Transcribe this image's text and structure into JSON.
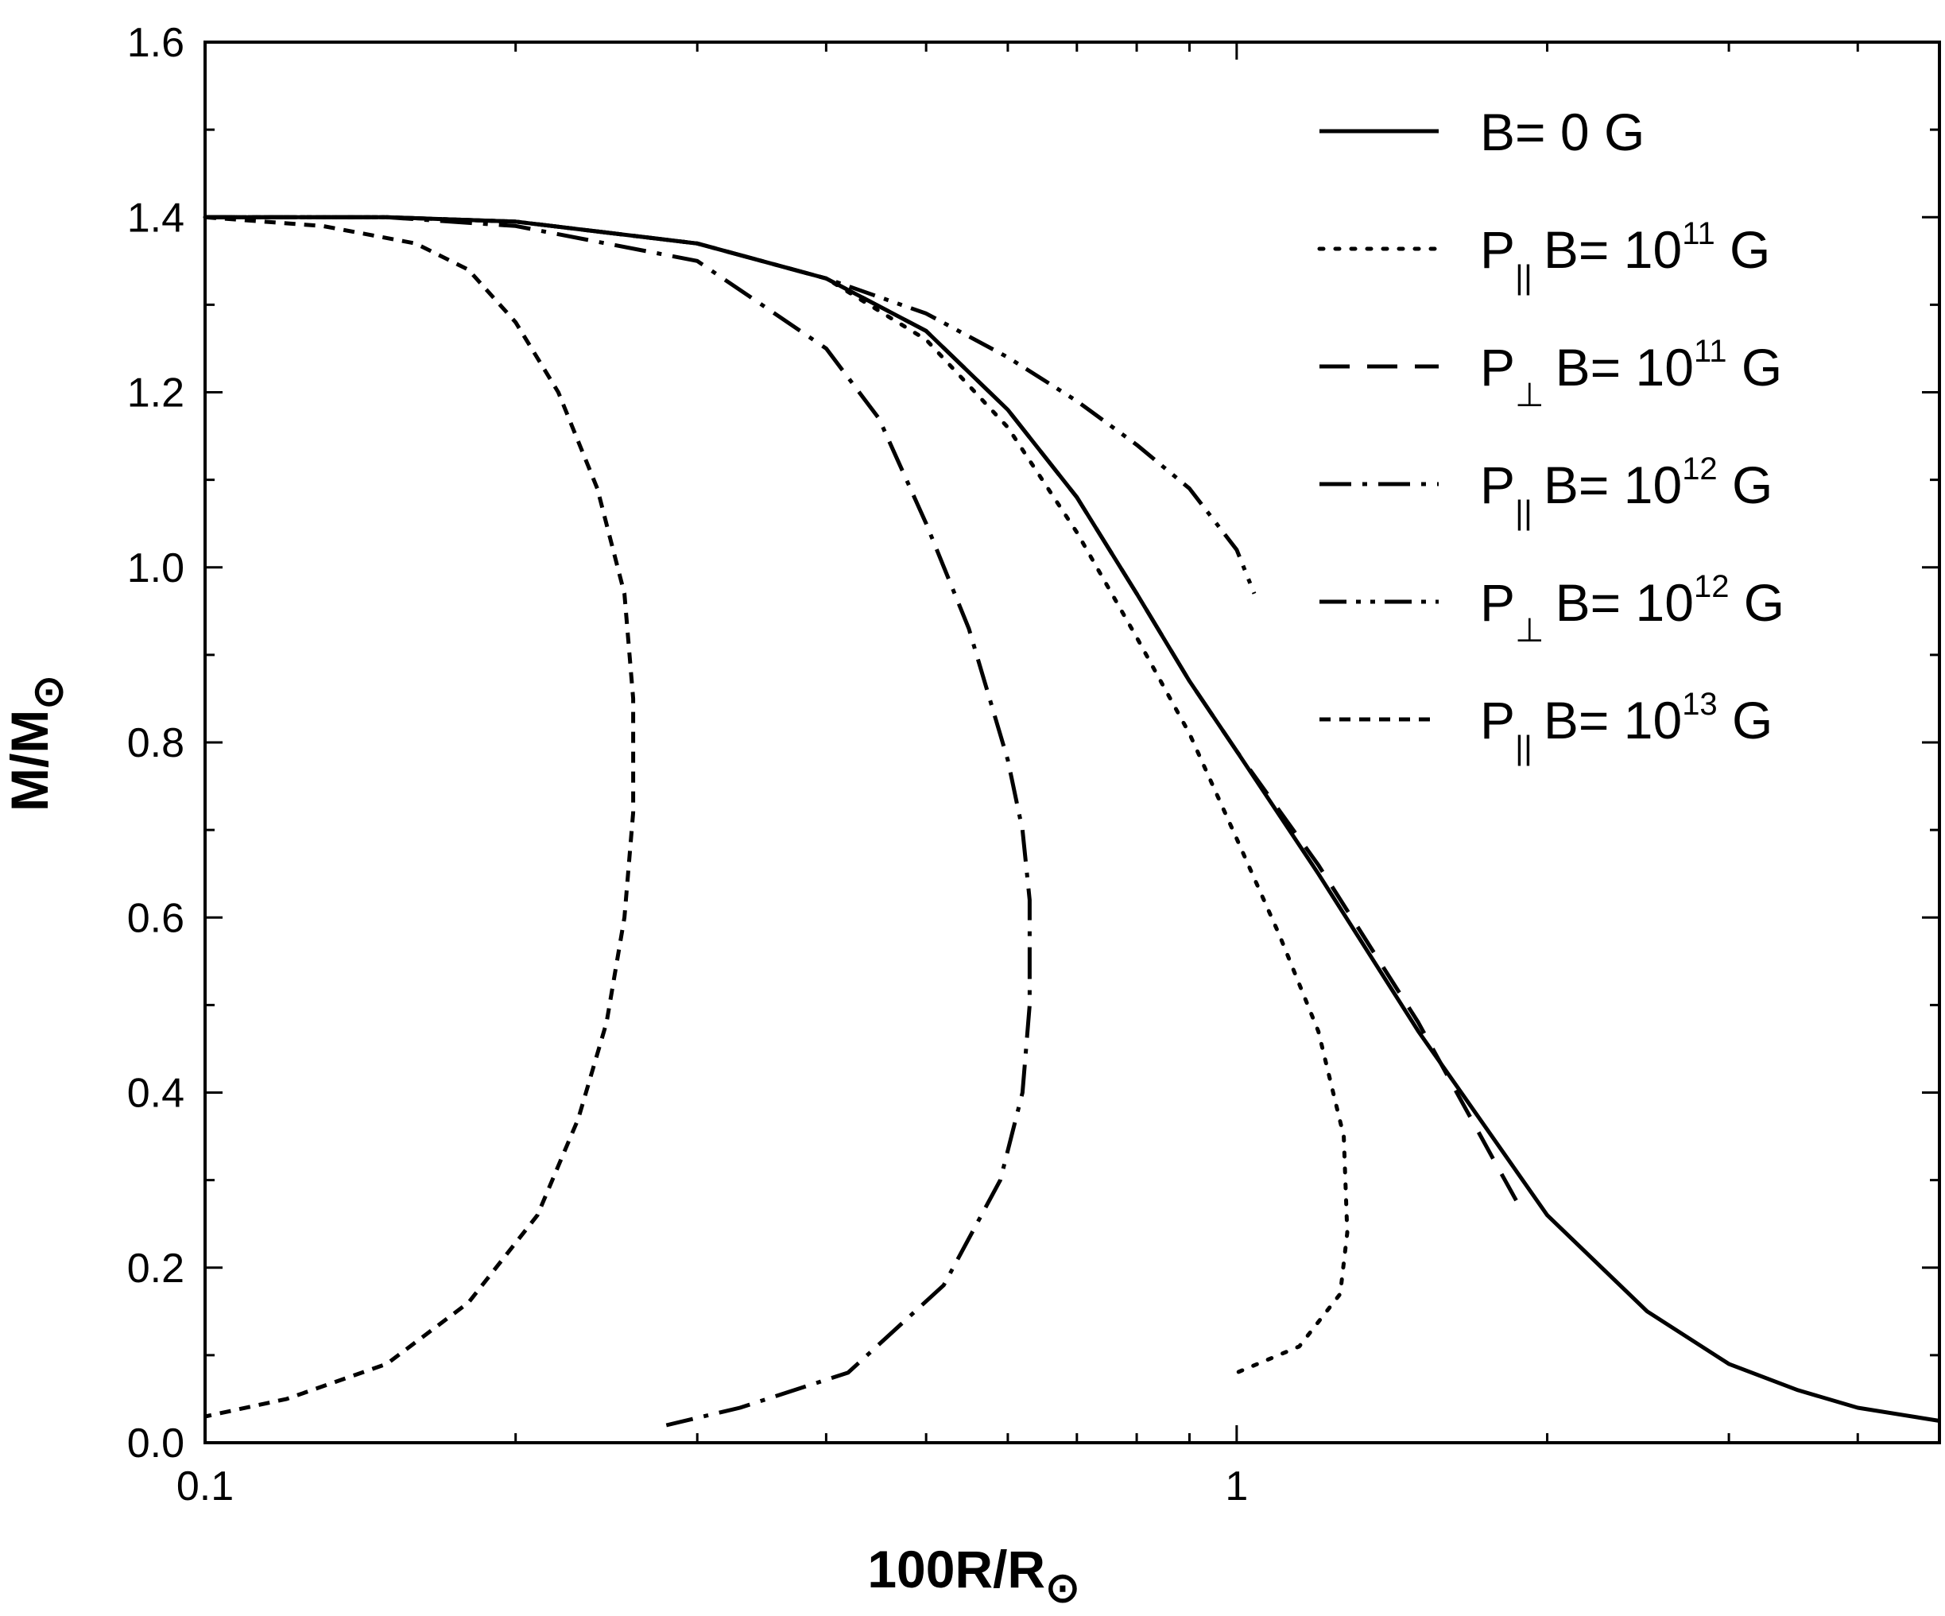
{
  "chart_data": {
    "type": "line",
    "xscale": "log",
    "xlim": [
      0.1,
      4.8
    ],
    "ylim": [
      0.0,
      1.6
    ],
    "xlabel": {
      "text": "100R/R",
      "sub": "⊙"
    },
    "ylabel": {
      "text": "M/M",
      "sub": "⊙"
    },
    "x_tick_labels": [
      {
        "value": 0.1,
        "label": "0.1"
      },
      {
        "value": 1,
        "label": "1"
      }
    ],
    "x_minor_ticks": [
      0.2,
      0.3,
      0.4,
      0.5,
      0.6,
      0.7,
      0.8,
      0.9,
      2,
      3,
      4
    ],
    "y_ticks": [
      {
        "value": 0.0,
        "label": "0.0"
      },
      {
        "value": 0.2,
        "label": "0.2"
      },
      {
        "value": 0.4,
        "label": "0.4"
      },
      {
        "value": 0.6,
        "label": "0.6"
      },
      {
        "value": 0.8,
        "label": "0.8"
      },
      {
        "value": 1.0,
        "label": "1.0"
      },
      {
        "value": 1.2,
        "label": "1.2"
      },
      {
        "value": 1.4,
        "label": "1.4"
      },
      {
        "value": 1.6,
        "label": "1.6"
      }
    ],
    "y_minor_ticks": [
      0.1,
      0.3,
      0.5,
      0.7,
      0.9,
      1.1,
      1.3,
      1.5
    ],
    "grid": false,
    "legend_position": "top-right",
    "series": [
      {
        "name": "B= 0 G",
        "legend": {
          "pre": "B= 0 G",
          "sub": "",
          "sup": "",
          "post": ""
        },
        "style": "solid",
        "x": [
          0.1,
          0.15,
          0.2,
          0.3,
          0.4,
          0.5,
          0.6,
          0.7,
          0.8,
          0.9,
          1.0,
          1.2,
          1.5,
          2.0,
          2.5,
          3.0,
          3.5,
          4.0,
          4.8
        ],
        "y": [
          1.4,
          1.4,
          1.395,
          1.37,
          1.33,
          1.27,
          1.18,
          1.08,
          0.97,
          0.87,
          0.79,
          0.65,
          0.47,
          0.26,
          0.15,
          0.09,
          0.06,
          0.04,
          0.025
        ]
      },
      {
        "name": "P|| B= 10^11 G",
        "legend": {
          "pre": "P",
          "sub": "||",
          "sup": "11",
          "post": "B= 10",
          "tail": " G"
        },
        "style": "dotted",
        "x": [
          0.1,
          0.15,
          0.2,
          0.3,
          0.4,
          0.5,
          0.6,
          0.7,
          0.8,
          0.9,
          1.0,
          1.1,
          1.2,
          1.27,
          1.28,
          1.26,
          1.15,
          1.0
        ],
        "y": [
          1.4,
          1.4,
          1.395,
          1.37,
          1.33,
          1.26,
          1.16,
          1.04,
          0.92,
          0.81,
          0.69,
          0.58,
          0.47,
          0.35,
          0.24,
          0.17,
          0.11,
          0.08
        ]
      },
      {
        "name": "P⊥ B= 10^11 G",
        "legend": {
          "pre": "P",
          "sub": "⊥",
          "sup": "11",
          "post": "B= 10",
          "tail": " G"
        },
        "style": "dashed",
        "x": [
          0.1,
          0.15,
          0.2,
          0.3,
          0.4,
          0.5,
          0.6,
          0.7,
          0.8,
          0.9,
          1.0,
          1.2,
          1.5,
          1.8,
          1.88
        ],
        "y": [
          1.4,
          1.4,
          1.395,
          1.37,
          1.33,
          1.27,
          1.18,
          1.08,
          0.97,
          0.87,
          0.79,
          0.66,
          0.48,
          0.31,
          0.27
        ]
      },
      {
        "name": "P|| B= 10^12 G",
        "legend": {
          "pre": "P",
          "sub": "||",
          "sup": "12",
          "post": "B= 10",
          "tail": " G"
        },
        "style": "dashdot",
        "x": [
          0.1,
          0.15,
          0.2,
          0.3,
          0.4,
          0.45,
          0.5,
          0.55,
          0.6,
          0.62,
          0.63,
          0.63,
          0.62,
          0.59,
          0.52,
          0.42,
          0.33,
          0.28
        ],
        "y": [
          1.4,
          1.4,
          1.39,
          1.35,
          1.25,
          1.17,
          1.05,
          0.93,
          0.78,
          0.7,
          0.62,
          0.5,
          0.4,
          0.3,
          0.18,
          0.08,
          0.04,
          0.02
        ]
      },
      {
        "name": "P⊥ B= 10^12 G",
        "legend": {
          "pre": "P",
          "sub": "⊥",
          "sup": "12",
          "post": "B= 10",
          "tail": " G"
        },
        "style": "dashdotdot",
        "x": [
          0.1,
          0.15,
          0.2,
          0.3,
          0.4,
          0.5,
          0.6,
          0.7,
          0.8,
          0.9,
          1.0,
          1.04
        ],
        "y": [
          1.4,
          1.4,
          1.395,
          1.37,
          1.33,
          1.29,
          1.24,
          1.19,
          1.14,
          1.09,
          1.02,
          0.97
        ]
      },
      {
        "name": "P|| B= 10^13 G",
        "legend": {
          "pre": "P",
          "sub": "||",
          "sup": "13",
          "post": "B= 10",
          "tail": " G"
        },
        "style": "shortdash",
        "x": [
          0.1,
          0.13,
          0.16,
          0.18,
          0.2,
          0.22,
          0.24,
          0.255,
          0.26,
          0.26,
          0.255,
          0.245,
          0.23,
          0.21,
          0.18,
          0.15,
          0.12,
          0.1
        ],
        "y": [
          1.4,
          1.39,
          1.37,
          1.34,
          1.28,
          1.2,
          1.09,
          0.97,
          0.85,
          0.72,
          0.6,
          0.48,
          0.37,
          0.26,
          0.16,
          0.09,
          0.05,
          0.03
        ]
      }
    ]
  }
}
